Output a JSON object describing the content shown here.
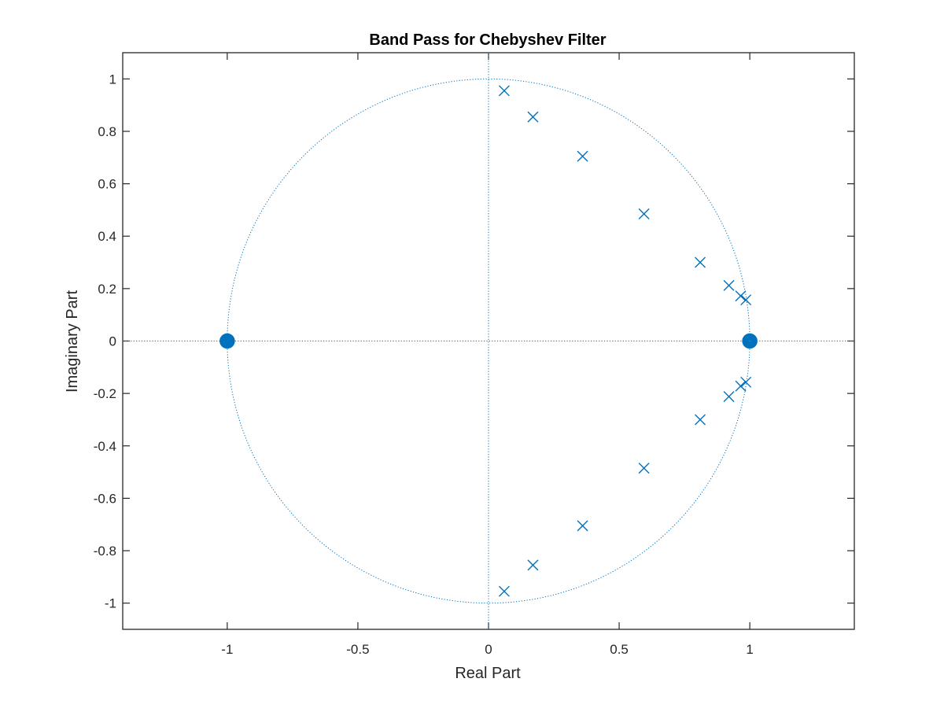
{
  "chart_data": {
    "type": "scatter",
    "title": "Band Pass for Chebyshev Filter",
    "xlabel": "Real Part",
    "ylabel": "Imaginary Part",
    "xlim": [
      -1.4,
      1.4
    ],
    "ylim": [
      -1.1,
      1.1
    ],
    "xticks": [
      -1,
      -0.5,
      0,
      0.5,
      1
    ],
    "xtick_labels": [
      "-1",
      "-0.5",
      "0",
      "0.5",
      "1"
    ],
    "yticks": [
      -1,
      -0.8,
      -0.6,
      -0.4,
      -0.2,
      0,
      0.2,
      0.4,
      0.6,
      0.8,
      1
    ],
    "ytick_labels": [
      "-1",
      "-0.8",
      "-0.6",
      "-0.4",
      "-0.2",
      "0",
      "0.2",
      "0.4",
      "0.6",
      "0.8",
      "1"
    ],
    "grid": false,
    "unit_circle": true,
    "color": "#0072BD",
    "series": [
      {
        "marker": "x",
        "points": [
          {
            "x": 0.06,
            "y": 0.955
          },
          {
            "x": 0.17,
            "y": 0.855
          },
          {
            "x": 0.36,
            "y": 0.705
          },
          {
            "x": 0.595,
            "y": 0.485
          },
          {
            "x": 0.81,
            "y": 0.3
          },
          {
            "x": 0.92,
            "y": 0.212
          },
          {
            "x": 0.965,
            "y": 0.172
          },
          {
            "x": 0.985,
            "y": 0.157
          },
          {
            "x": 0.06,
            "y": -0.955
          },
          {
            "x": 0.17,
            "y": -0.855
          },
          {
            "x": 0.36,
            "y": -0.705
          },
          {
            "x": 0.595,
            "y": -0.485
          },
          {
            "x": 0.81,
            "y": -0.3
          },
          {
            "x": 0.92,
            "y": -0.212
          },
          {
            "x": 0.965,
            "y": -0.172
          },
          {
            "x": 0.985,
            "y": -0.157
          }
        ]
      },
      {
        "marker": "o",
        "multiplicity": 8,
        "points": [
          {
            "x": -1,
            "y": 0
          },
          {
            "x": 1,
            "y": 0
          }
        ]
      }
    ]
  }
}
